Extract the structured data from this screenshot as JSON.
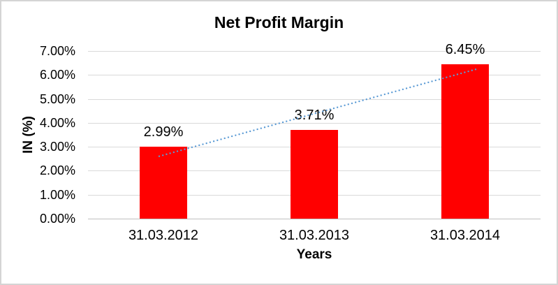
{
  "frame": {
    "background": "#ffffff",
    "border_color": "#d4d4d4"
  },
  "chart_data": {
    "type": "bar",
    "title": "Net Profit Margin",
    "categories": [
      "31.03.2012",
      "31.03.2013",
      "31.03.2014"
    ],
    "series": [
      {
        "name": "Net Profit Margin",
        "color": "#ff0000",
        "values": [
          2.99,
          3.71,
          6.45
        ]
      }
    ],
    "data_labels": [
      "2.99%",
      "3.71%",
      "6.45%"
    ],
    "xlabel": "Years",
    "ylabel": "IN (%)",
    "ylim": [
      0,
      7
    ],
    "ytick_step": 1,
    "ytick_labels": [
      "0.00%",
      "1.00%",
      "2.00%",
      "3.00%",
      "4.00%",
      "5.00%",
      "6.00%",
      "7.00%"
    ],
    "grid": true,
    "gridline_color": "#d9d9d9",
    "axis_line_color": "#bfbfbf",
    "legend": "none",
    "trendline": {
      "type": "linear",
      "style": "dotted",
      "color": "#5b9bd5"
    }
  }
}
